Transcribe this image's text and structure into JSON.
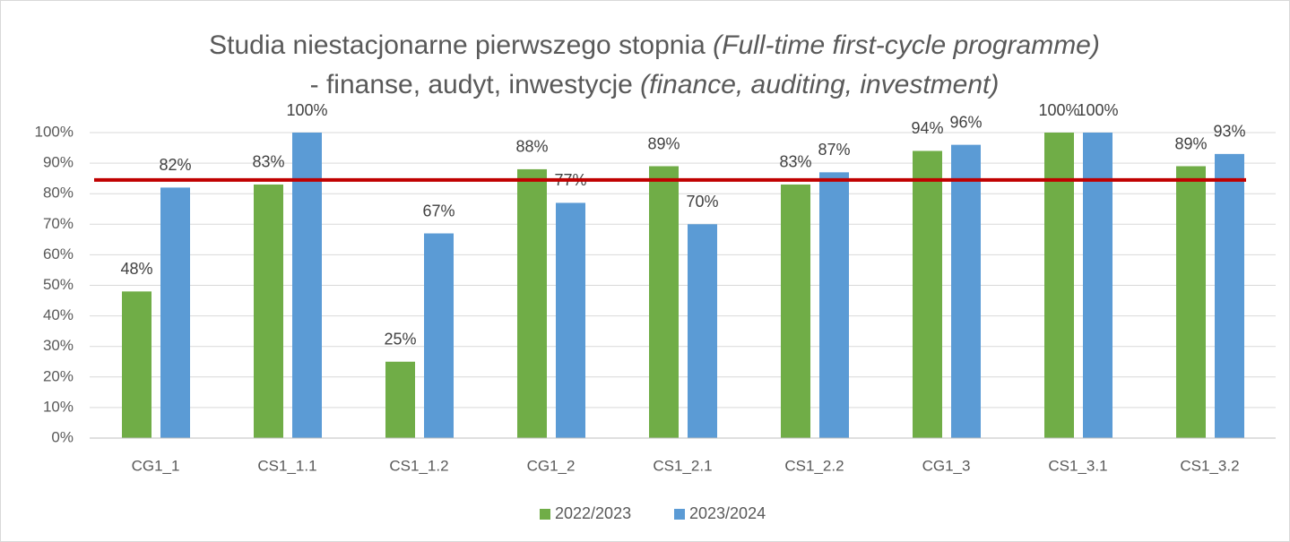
{
  "chart_data": {
    "type": "bar",
    "title": {
      "line1": "Studia niestacjonarne pierwszego stopnia",
      "line1_italic": "(Full-time first-cycle programme)",
      "line2": "- finanse, audyt, inwestycje",
      "line2_italic": "(finance, auditing, investment)"
    },
    "categories": [
      "CG1_1",
      "CS1_1.1",
      "CS1_1.2",
      "CG1_2",
      "CS1_2.1",
      "CS1_2.2",
      "CG1_3",
      "CS1_3.1",
      "CS1_3.2"
    ],
    "series": [
      {
        "name": "2022/2023",
        "color": "#70ad47",
        "values": [
          48,
          83,
          25,
          88,
          89,
          83,
          94,
          100,
          89
        ],
        "value_labels": [
          "48%",
          "83%",
          "25%",
          "88%",
          "89%",
          "83%",
          "94%",
          "100%",
          "89%"
        ]
      },
      {
        "name": "2023/2024",
        "color": "#5b9bd5",
        "values": [
          82,
          100,
          67,
          77,
          70,
          87,
          96,
          100,
          93
        ],
        "value_labels": [
          "82%",
          "100%",
          "67%",
          "77%",
          "70%",
          "87%",
          "96%",
          "100%",
          "93%"
        ]
      }
    ],
    "ylim": [
      0,
      100
    ],
    "yticks": [
      {
        "value": 0,
        "label": "0%"
      },
      {
        "value": 10,
        "label": "10%"
      },
      {
        "value": 20,
        "label": "20%"
      },
      {
        "value": 30,
        "label": "30%"
      },
      {
        "value": 40,
        "label": "40%"
      },
      {
        "value": 50,
        "label": "50%"
      },
      {
        "value": 60,
        "label": "60%"
      },
      {
        "value": 70,
        "label": "70%"
      },
      {
        "value": 80,
        "label": "80%"
      },
      {
        "value": 90,
        "label": "90%"
      },
      {
        "value": 100,
        "label": "100%"
      }
    ],
    "grid": true,
    "legend": "bottom",
    "reference_line": {
      "value": 84.5,
      "color": "#c00000"
    }
  }
}
